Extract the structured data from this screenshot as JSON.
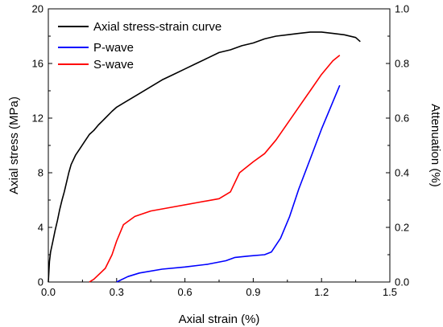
{
  "chart_data": {
    "type": "line",
    "xlabel": "Axial strain (%)",
    "ylabel": "Axial stress (MPa)",
    "y2label": "Attenuation (%)",
    "xlim": [
      0,
      1.5
    ],
    "ylim": [
      0,
      20
    ],
    "y2lim": [
      0,
      1.0
    ],
    "xticks": [
      "0.0",
      "0.3",
      "0.6",
      "0.9",
      "1.2",
      "1.5"
    ],
    "yticks": [
      "0",
      "4",
      "8",
      "12",
      "16",
      "20"
    ],
    "y2ticks": [
      "0.0",
      "0.2",
      "0.4",
      "0.6",
      "0.8",
      "1.0"
    ],
    "grid": false,
    "legend_position": "top-left",
    "series": [
      {
        "name": "Axial stress-strain curve",
        "axis": "left",
        "color": "#000000",
        "points": [
          [
            0.0,
            0.0
          ],
          [
            0.005,
            1.5
          ],
          [
            0.01,
            2.2
          ],
          [
            0.02,
            3.0
          ],
          [
            0.03,
            3.8
          ],
          [
            0.04,
            4.5
          ],
          [
            0.05,
            5.3
          ],
          [
            0.06,
            6.0
          ],
          [
            0.07,
            6.6
          ],
          [
            0.08,
            7.3
          ],
          [
            0.09,
            8.0
          ],
          [
            0.1,
            8.6
          ],
          [
            0.12,
            9.3
          ],
          [
            0.14,
            9.8
          ],
          [
            0.16,
            10.3
          ],
          [
            0.18,
            10.8
          ],
          [
            0.2,
            11.1
          ],
          [
            0.22,
            11.5
          ],
          [
            0.25,
            12.0
          ],
          [
            0.28,
            12.5
          ],
          [
            0.3,
            12.8
          ],
          [
            0.35,
            13.3
          ],
          [
            0.4,
            13.8
          ],
          [
            0.45,
            14.3
          ],
          [
            0.5,
            14.8
          ],
          [
            0.55,
            15.2
          ],
          [
            0.6,
            15.6
          ],
          [
            0.65,
            16.0
          ],
          [
            0.7,
            16.4
          ],
          [
            0.75,
            16.8
          ],
          [
            0.8,
            17.0
          ],
          [
            0.85,
            17.3
          ],
          [
            0.9,
            17.5
          ],
          [
            0.95,
            17.8
          ],
          [
            1.0,
            18.0
          ],
          [
            1.05,
            18.1
          ],
          [
            1.1,
            18.2
          ],
          [
            1.15,
            18.3
          ],
          [
            1.2,
            18.3
          ],
          [
            1.25,
            18.2
          ],
          [
            1.3,
            18.1
          ],
          [
            1.35,
            17.9
          ],
          [
            1.37,
            17.6
          ]
        ]
      },
      {
        "name": "P-wave",
        "axis": "right",
        "color": "#0000ff",
        "points": [
          [
            0.3,
            0.0
          ],
          [
            0.35,
            0.02
          ],
          [
            0.4,
            0.033
          ],
          [
            0.5,
            0.047
          ],
          [
            0.6,
            0.055
          ],
          [
            0.7,
            0.065
          ],
          [
            0.78,
            0.078
          ],
          [
            0.82,
            0.09
          ],
          [
            0.88,
            0.095
          ],
          [
            0.95,
            0.1
          ],
          [
            0.98,
            0.11
          ],
          [
            1.02,
            0.16
          ],
          [
            1.06,
            0.24
          ],
          [
            1.1,
            0.34
          ],
          [
            1.15,
            0.45
          ],
          [
            1.2,
            0.56
          ],
          [
            1.24,
            0.64
          ],
          [
            1.28,
            0.72
          ]
        ]
      },
      {
        "name": "S-wave",
        "axis": "right",
        "color": "#ff0000",
        "points": [
          [
            0.18,
            0.0
          ],
          [
            0.2,
            0.01
          ],
          [
            0.25,
            0.05
          ],
          [
            0.28,
            0.1
          ],
          [
            0.3,
            0.15
          ],
          [
            0.33,
            0.21
          ],
          [
            0.38,
            0.24
          ],
          [
            0.45,
            0.26
          ],
          [
            0.55,
            0.275
          ],
          [
            0.65,
            0.29
          ],
          [
            0.75,
            0.305
          ],
          [
            0.8,
            0.33
          ],
          [
            0.84,
            0.4
          ],
          [
            0.9,
            0.44
          ],
          [
            0.95,
            0.47
          ],
          [
            1.0,
            0.52
          ],
          [
            1.05,
            0.58
          ],
          [
            1.1,
            0.64
          ],
          [
            1.15,
            0.7
          ],
          [
            1.2,
            0.76
          ],
          [
            1.25,
            0.81
          ],
          [
            1.28,
            0.83
          ]
        ]
      }
    ]
  }
}
